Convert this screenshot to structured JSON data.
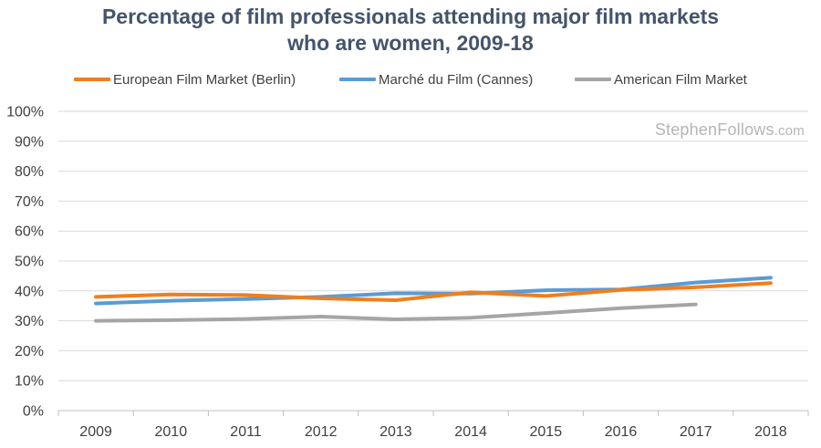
{
  "chart_data": {
    "type": "line",
    "title_lines": [
      "Percentage of film professionals attending major film markets",
      "who are women, 2009-18"
    ],
    "xlabel": "",
    "ylabel": "",
    "categories": [
      "2009",
      "2010",
      "2011",
      "2012",
      "2013",
      "2014",
      "2015",
      "2016",
      "2017",
      "2018"
    ],
    "ylim": [
      0,
      100
    ],
    "yticks": [
      0,
      10,
      20,
      30,
      40,
      50,
      60,
      70,
      80,
      90,
      100
    ],
    "ytick_labels": [
      "0%",
      "10%",
      "20%",
      "30%",
      "40%",
      "50%",
      "60%",
      "70%",
      "80%",
      "90%",
      "100%"
    ],
    "grid": true,
    "legend_position": "top",
    "series": [
      {
        "name": "European Film Market (Berlin)",
        "color": "#f07e1e",
        "values": [
          38.0,
          38.8,
          38.6,
          37.5,
          36.9,
          39.5,
          38.3,
          40.3,
          41.2,
          42.6
        ]
      },
      {
        "name": "Marché du Film (Cannes)",
        "color": "#5b9bd5",
        "values": [
          35.8,
          36.7,
          37.3,
          38.0,
          39.2,
          39.1,
          40.2,
          40.5,
          42.8,
          44.4
        ]
      },
      {
        "name": "American Film Market",
        "color": "#a5a5a5",
        "values": [
          30.0,
          30.2,
          30.6,
          31.4,
          30.5,
          31.0,
          32.6,
          34.2,
          35.5,
          null
        ]
      }
    ],
    "annotations": {
      "watermark_main": "StephenFollows",
      "watermark_domain": ".com"
    }
  }
}
